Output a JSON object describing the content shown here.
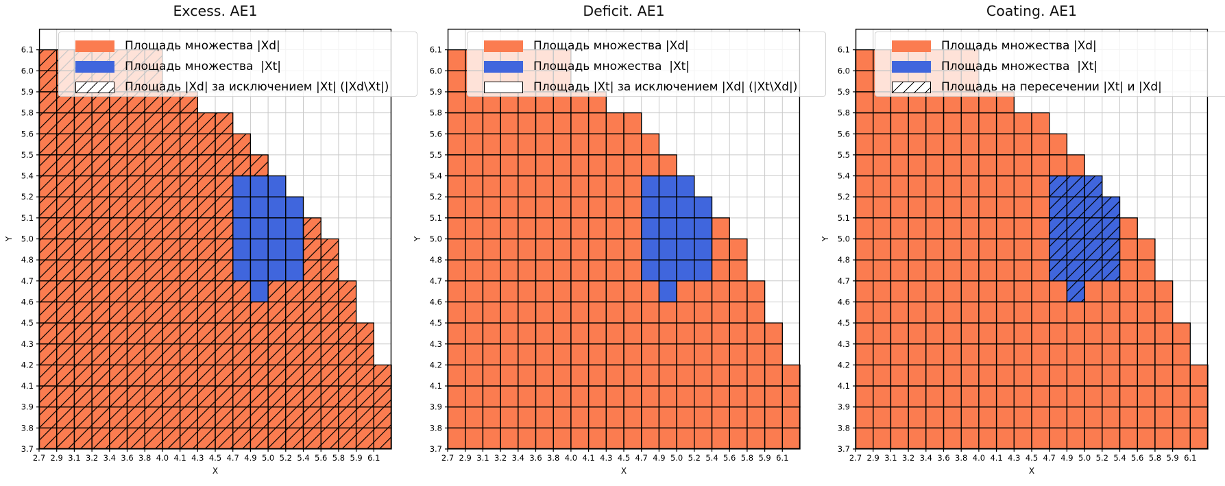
{
  "figure": {
    "background": "#ffffff"
  },
  "colors": {
    "xd_fill": "#FB7C50",
    "xt_fill": "#4066DD",
    "cell_edge": "#000000",
    "grid_line": "#c9c9c9",
    "hatch_line": "#000000",
    "legend_border": "#d2d2d2"
  },
  "chart_data": [
    {
      "type": "heatmap",
      "title": "Excess. AE1",
      "xlabel": "X",
      "ylabel": "Y",
      "grid": {
        "cols": 20,
        "rows": 20,
        "gridlines": true
      },
      "x_ticks": [
        "2.7",
        "2.9",
        "3.1",
        "3.2",
        "3.4",
        "3.6",
        "3.8",
        "4.0",
        "4.1",
        "4.3",
        "4.5",
        "4.7",
        "4.9",
        "5.0",
        "5.2",
        "5.4",
        "5.6",
        "5.8",
        "5.9",
        "6.1"
      ],
      "y_ticks": [
        "6.1",
        "6.0",
        "5.9",
        "5.8",
        "5.6",
        "5.5",
        "5.4",
        "5.2",
        "5.1",
        "5.0",
        "4.8",
        "4.7",
        "4.6",
        "4.5",
        "4.3",
        "4.2",
        "4.1",
        "3.9",
        "3.8",
        "3.7"
      ],
      "xd_row_fill": [
        0,
        7,
        7,
        9,
        11,
        12,
        13,
        14,
        15,
        16,
        17,
        17,
        18,
        18,
        19,
        19,
        20,
        20,
        20,
        20
      ],
      "xt_cells": [
        [
          7,
          11,
          13
        ],
        [
          8,
          11,
          14
        ],
        [
          9,
          11,
          14
        ],
        [
          10,
          11,
          14
        ],
        [
          11,
          11,
          14
        ],
        [
          12,
          12,
          12
        ]
      ],
      "hatch_on": "xd",
      "legend": [
        {
          "swatch": "solid-orange",
          "label": "Площадь множества |Xd|"
        },
        {
          "swatch": "solid-blue",
          "label": "Площадь множества  |Xt|"
        },
        {
          "swatch": "hatched",
          "label": "Площадь |Xd| за исключением |Xt| (|Xd\\Xt|)"
        }
      ]
    },
    {
      "type": "heatmap",
      "title": "Deficit. AE1",
      "xlabel": "X",
      "ylabel": "Y",
      "grid": {
        "cols": 20,
        "rows": 20,
        "gridlines": true
      },
      "x_ticks": [
        "2.7",
        "2.9",
        "3.1",
        "3.2",
        "3.4",
        "3.6",
        "3.8",
        "4.0",
        "4.1",
        "4.3",
        "4.5",
        "4.7",
        "4.9",
        "5.0",
        "5.2",
        "5.4",
        "5.6",
        "5.8",
        "5.9",
        "6.1"
      ],
      "y_ticks": [
        "6.1",
        "6.0",
        "5.9",
        "5.8",
        "5.6",
        "5.5",
        "5.4",
        "5.2",
        "5.1",
        "5.0",
        "4.8",
        "4.7",
        "4.6",
        "4.5",
        "4.3",
        "4.2",
        "4.1",
        "3.9",
        "3.8",
        "3.7"
      ],
      "xd_row_fill": [
        0,
        7,
        7,
        9,
        11,
        12,
        13,
        14,
        15,
        16,
        17,
        17,
        18,
        18,
        19,
        19,
        20,
        20,
        20,
        20
      ],
      "xt_cells": [
        [
          7,
          11,
          13
        ],
        [
          8,
          11,
          14
        ],
        [
          9,
          11,
          14
        ],
        [
          10,
          11,
          14
        ],
        [
          11,
          11,
          14
        ],
        [
          12,
          12,
          12
        ]
      ],
      "hatch_on": "none",
      "legend": [
        {
          "swatch": "solid-orange",
          "label": "Площадь множества |Xd|"
        },
        {
          "swatch": "solid-blue",
          "label": "Площадь множества  |Xt|"
        },
        {
          "swatch": "outline",
          "label": "Площадь |Xt| за исключением |Xd| (|Xt\\Xd|)"
        }
      ]
    },
    {
      "type": "heatmap",
      "title": "Coating. AE1",
      "xlabel": "X",
      "ylabel": "Y",
      "grid": {
        "cols": 20,
        "rows": 20,
        "gridlines": true
      },
      "x_ticks": [
        "2.7",
        "2.9",
        "3.1",
        "3.2",
        "3.4",
        "3.6",
        "3.8",
        "4.0",
        "4.1",
        "4.3",
        "4.5",
        "4.7",
        "4.9",
        "5.0",
        "5.2",
        "5.4",
        "5.6",
        "5.8",
        "5.9",
        "6.1"
      ],
      "y_ticks": [
        "6.1",
        "6.0",
        "5.9",
        "5.8",
        "5.6",
        "5.5",
        "5.4",
        "5.2",
        "5.1",
        "5.0",
        "4.8",
        "4.7",
        "4.6",
        "4.5",
        "4.3",
        "4.2",
        "4.1",
        "3.9",
        "3.8",
        "3.7"
      ],
      "xd_row_fill": [
        0,
        7,
        7,
        9,
        11,
        12,
        13,
        14,
        15,
        16,
        17,
        17,
        18,
        18,
        19,
        19,
        20,
        20,
        20,
        20
      ],
      "xt_cells": [
        [
          7,
          11,
          13
        ],
        [
          8,
          11,
          14
        ],
        [
          9,
          11,
          14
        ],
        [
          10,
          11,
          14
        ],
        [
          11,
          11,
          14
        ],
        [
          12,
          12,
          12
        ]
      ],
      "hatch_on": "xt",
      "legend": [
        {
          "swatch": "solid-orange",
          "label": "Площадь множества |Xd|"
        },
        {
          "swatch": "solid-blue",
          "label": "Площадь множества  |Xt|"
        },
        {
          "swatch": "hatched",
          "label": "Площадь на пересечении |Xt| и |Xd|"
        }
      ]
    }
  ]
}
